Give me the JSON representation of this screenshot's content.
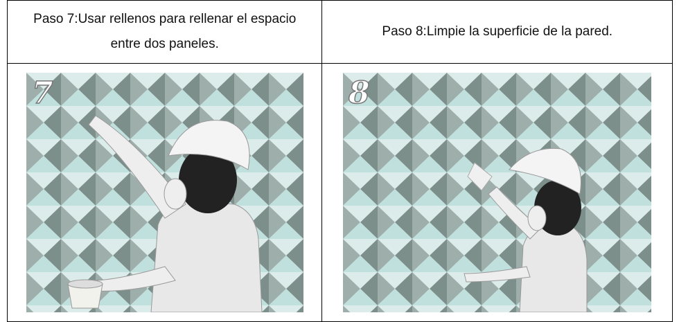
{
  "table": {
    "headers": [
      "Paso 7:Usar rellenos para rellenar el espacio entre dos paneles.",
      "Paso 8:Limpie la superficie de la pared."
    ]
  },
  "images": [
    {
      "badge": "7"
    },
    {
      "badge": "8"
    }
  ]
}
